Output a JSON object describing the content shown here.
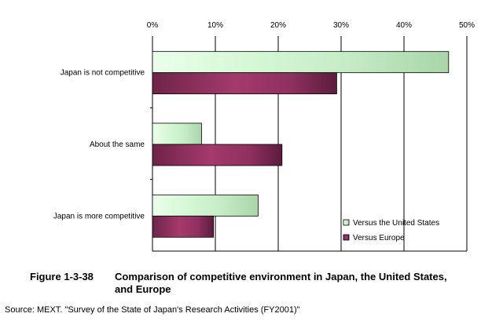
{
  "chart_data": {
    "type": "bar",
    "orientation": "horizontal",
    "categories": [
      "Japan is not competitive",
      "About the same",
      "Japan is more competitive"
    ],
    "series": [
      {
        "name": "Versus the United States",
        "values": [
          47.1,
          7.8,
          16.8
        ],
        "color": "#c8f0c8"
      },
      {
        "name": "Versus Europe",
        "values": [
          29.3,
          20.6,
          9.7
        ],
        "color": "#8b2a5c"
      }
    ],
    "xlim": [
      0,
      50
    ],
    "xticks": [
      0,
      10,
      20,
      30,
      40,
      50
    ],
    "tick_labels": [
      "0%",
      "10%",
      "20%",
      "30%",
      "40%",
      "50%"
    ],
    "xaxis_position": "top",
    "grid": "vertical",
    "legend_position": "bottom-right"
  },
  "caption": {
    "figure_number": "Figure 1-3-38",
    "title_line1": "Comparison of competitive environment in Japan, the United States,",
    "title_line2": "and Europe"
  },
  "source": "Source: MEXT. \"Survey of the State of Japan's Research Activities (FY2001)\""
}
